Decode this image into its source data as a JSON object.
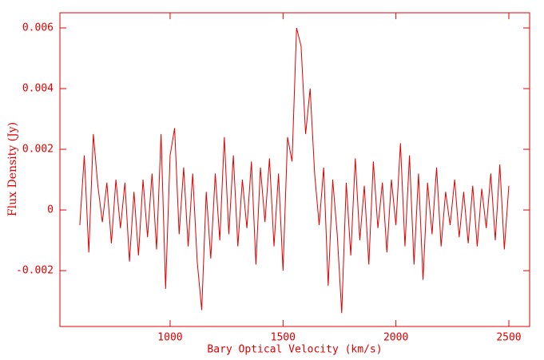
{
  "chart_data": {
    "type": "line",
    "xlabel": "Bary Optical Velocity (km/s)",
    "ylabel": "Flux Density (Jy)",
    "color": "#e00000",
    "xlim": [
      512,
      2592
    ],
    "ylim": [
      -0.00384,
      0.0065
    ],
    "xticks": [
      1000,
      1500,
      2000,
      2500
    ],
    "yticks": [
      -0.002,
      0,
      0.002,
      0.004,
      0.006
    ],
    "x": [
      600,
      620,
      640,
      660,
      680,
      700,
      720,
      740,
      760,
      780,
      800,
      820,
      840,
      860,
      880,
      900,
      920,
      940,
      960,
      980,
      1000,
      1020,
      1040,
      1060,
      1080,
      1100,
      1120,
      1140,
      1160,
      1180,
      1200,
      1220,
      1240,
      1260,
      1280,
      1300,
      1320,
      1340,
      1360,
      1380,
      1400,
      1420,
      1440,
      1460,
      1480,
      1500,
      1520,
      1540,
      1560,
      1580,
      1600,
      1620,
      1640,
      1660,
      1680,
      1700,
      1720,
      1740,
      1760,
      1780,
      1800,
      1820,
      1840,
      1860,
      1880,
      1900,
      1920,
      1940,
      1960,
      1980,
      2000,
      2020,
      2040,
      2060,
      2080,
      2100,
      2120,
      2140,
      2160,
      2180,
      2200,
      2220,
      2240,
      2260,
      2280,
      2300,
      2320,
      2340,
      2360,
      2380,
      2400,
      2420,
      2440,
      2460,
      2480,
      2500
    ],
    "values": [
      -0.0005,
      0.0018,
      -0.0014,
      0.0025,
      0.0008,
      -0.0004,
      0.0009,
      -0.0011,
      0.001,
      -0.0006,
      0.0009,
      -0.0017,
      0.0006,
      -0.0015,
      0.001,
      -0.0009,
      0.0012,
      -0.0013,
      0.0025,
      -0.0026,
      0.0018,
      0.0027,
      -0.0008,
      0.0014,
      -0.0012,
      0.0012,
      -0.0017,
      -0.0033,
      0.0006,
      -0.0016,
      0.0012,
      -0.001,
      0.0024,
      -0.0008,
      0.0018,
      -0.0012,
      0.001,
      -0.0006,
      0.0016,
      -0.0018,
      0.0014,
      -0.0004,
      0.0017,
      -0.0012,
      0.0012,
      -0.002,
      0.0024,
      0.0016,
      0.006,
      0.0054,
      0.0025,
      0.004,
      0.0012,
      -0.0005,
      0.0014,
      -0.0025,
      0.001,
      -0.0008,
      -0.0034,
      0.0009,
      -0.0015,
      0.0017,
      -0.001,
      0.0008,
      -0.0018,
      0.0016,
      -0.0006,
      0.0009,
      -0.0014,
      0.001,
      -0.0005,
      0.0022,
      -0.0012,
      0.0018,
      -0.0018,
      0.0012,
      -0.0023,
      0.0009,
      -0.0008,
      0.0014,
      -0.0012,
      0.0006,
      -0.0005,
      0.001,
      -0.0009,
      0.0006,
      -0.0011,
      0.0008,
      -0.0012,
      0.0007,
      -0.0006,
      0.0012,
      -0.001,
      0.0015,
      -0.0013,
      0.0008
    ]
  }
}
